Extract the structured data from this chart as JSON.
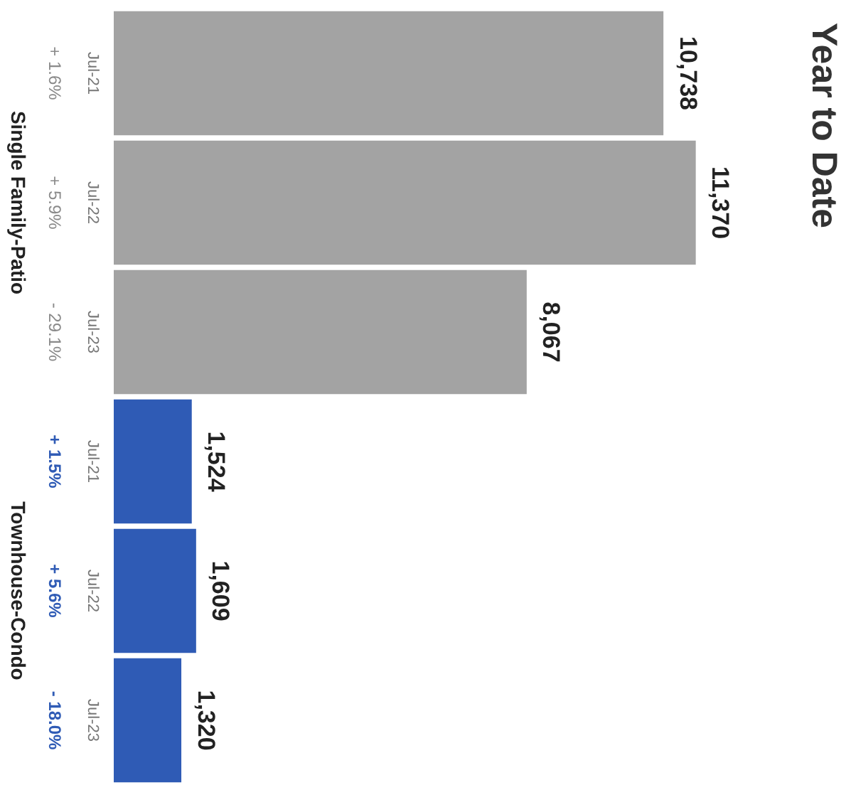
{
  "chart_data": {
    "type": "bar",
    "orientation": "horizontal",
    "title": "Year to Date",
    "categories": [
      "Jul-21",
      "Jul-22",
      "Jul-23",
      "Jul-21",
      "Jul-22",
      "Jul-23"
    ],
    "values": [
      10738,
      11370,
      8067,
      1524,
      1609,
      1320
    ],
    "value_labels": [
      "10,738",
      "11,370",
      "8,067",
      "1,524",
      "1,609",
      "1,320"
    ],
    "colors": [
      "#a3a3a3",
      "#a3a3a3",
      "#a3a3a3",
      "#2f5bb5",
      "#2f5bb5",
      "#2f5bb5"
    ],
    "annotations": [
      "+ 1.6%",
      "+ 5.9%",
      "- 29.1%",
      "+ 1.5%",
      "+ 5.6%",
      "- 18.0%",
      "Single Family-Patio",
      "Townhouse-Condo"
    ],
    "tick_labels": "y",
    "legend": false
  }
}
